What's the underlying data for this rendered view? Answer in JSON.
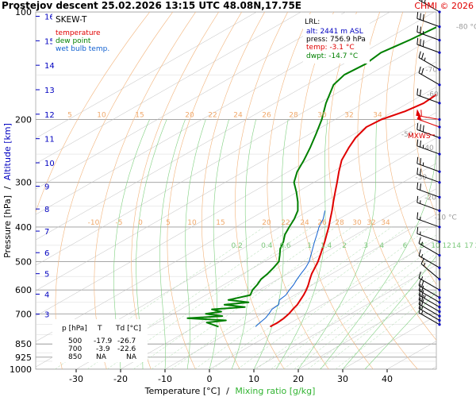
{
  "chart_data": {
    "type": "line",
    "title": "Prostejov   descent  25.02.2026 13:15 UTC  48.08N,17.75E",
    "copyright": "CHMI © 2026",
    "diagram_label": "SKEW-T",
    "legend": [
      {
        "label": "temperature",
        "color": "#e00000"
      },
      {
        "label": "dew point",
        "color": "#008000"
      },
      {
        "label": "wet bulb temp.",
        "color": "#1060d0"
      }
    ],
    "lrl_box": {
      "heading": "LRL:",
      "lines": [
        {
          "text": "alt: 2441 m ASL",
          "color": "#0000c0"
        },
        {
          "text": "press: 756.9 hPa",
          "color": "#000000"
        },
        {
          "text": "temp: -3.1 °C",
          "color": "#e00000"
        },
        {
          "text": "dwpt: -14.7 °C",
          "color": "#008000"
        }
      ]
    },
    "mxws_label": "MXWS",
    "yaxis": {
      "label_pressure": "Pressure [hPa]",
      "label_separator": "/",
      "label_altitude": "Altitude [km]",
      "pressure_ticks": [
        100,
        200,
        300,
        400,
        500,
        600,
        700,
        850,
        925,
        1000
      ],
      "altitude_ticks": [
        16,
        15,
        14,
        13,
        12,
        11,
        10,
        9,
        8,
        7,
        6,
        5,
        4,
        3
      ],
      "range_hpa": [
        1000,
        100
      ]
    },
    "xaxis": {
      "label_temperature": "Temperature [°C]",
      "label_separator": "/",
      "label_mixing": "Mixing ratio [g/kg]",
      "ticks": [
        -30,
        -20,
        -10,
        0,
        10,
        20,
        30,
        40
      ]
    },
    "isotherm_labels": [
      {
        "label": "-80 °C",
        "p": 110,
        "t": -80
      },
      {
        "label": "-70",
        "p": 145,
        "t": -70
      },
      {
        "label": "-60",
        "p": 170,
        "t": -60
      },
      {
        "label": "-50",
        "p": 220,
        "t": -50
      },
      {
        "label": "-40",
        "p": 240,
        "t": -40
      },
      {
        "label": "-30",
        "p": 290,
        "t": -30
      },
      {
        "label": "-20",
        "p": 330,
        "t": -20
      },
      {
        "label": "-10 °C",
        "p": 375,
        "t": -10
      }
    ],
    "adiabat_labels_upper": [
      "5",
      "10",
      "15",
      "20",
      "22",
      "24",
      "26",
      "28",
      "30",
      "32",
      "34"
    ],
    "adiabat_labels_lower": [
      "-10",
      "-5",
      "0",
      "5",
      "10",
      "15",
      "20",
      "22",
      "24",
      "26",
      "28",
      "30",
      "32",
      "34"
    ],
    "mixing_ratio_labels": [
      "0.2",
      "0.4",
      "0.6",
      "1",
      "1.4",
      "2",
      "3",
      "4",
      "6",
      "8",
      "10",
      "12",
      "14",
      "17",
      "20",
      "25"
    ],
    "table": {
      "headers": [
        "p [hPa]",
        "T",
        "Td [°C]"
      ],
      "rows": [
        [
          "500",
          "-17.9",
          "-26.7"
        ],
        [
          "700",
          "-3.9",
          "-22.6"
        ],
        [
          "850",
          "NA",
          "NA"
        ]
      ]
    },
    "series": [
      {
        "name": "temperature",
        "color": "#e00000",
        "points": [
          {
            "p": 760,
            "t": -3.1
          },
          {
            "p": 740,
            "t": -3.0
          },
          {
            "p": 720,
            "t": -3.3
          },
          {
            "p": 700,
            "t": -3.9
          },
          {
            "p": 680,
            "t": -4.8
          },
          {
            "p": 660,
            "t": -5.6
          },
          {
            "p": 640,
            "t": -6.8
          },
          {
            "p": 620,
            "t": -8.0
          },
          {
            "p": 600,
            "t": -9.4
          },
          {
            "p": 580,
            "t": -11.0
          },
          {
            "p": 560,
            "t": -12.8
          },
          {
            "p": 540,
            "t": -14.6
          },
          {
            "p": 520,
            "t": -16.2
          },
          {
            "p": 500,
            "t": -17.9
          },
          {
            "p": 480,
            "t": -19.9
          },
          {
            "p": 460,
            "t": -22.0
          },
          {
            "p": 440,
            "t": -24.2
          },
          {
            "p": 420,
            "t": -26.6
          },
          {
            "p": 400,
            "t": -29.1
          },
          {
            "p": 380,
            "t": -31.9
          },
          {
            "p": 360,
            "t": -34.8
          },
          {
            "p": 340,
            "t": -38.0
          },
          {
            "p": 320,
            "t": -41.3
          },
          {
            "p": 300,
            "t": -44.8
          },
          {
            "p": 280,
            "t": -48.6
          },
          {
            "p": 260,
            "t": -52.5
          },
          {
            "p": 240,
            "t": -55.8
          },
          {
            "p": 225,
            "t": -58.2
          },
          {
            "p": 210,
            "t": -60.0
          },
          {
            "p": 200,
            "t": -59.6
          },
          {
            "p": 190,
            "t": -57.5
          },
          {
            "p": 180,
            "t": -56.5
          },
          {
            "p": 170,
            "t": -57.0
          },
          {
            "p": 160,
            "t": -57.8
          },
          {
            "p": 150,
            "t": -57.0
          },
          {
            "p": 140,
            "t": -56.5
          },
          {
            "p": 130,
            "t": -57.8
          },
          {
            "p": 125,
            "t": -57.0
          },
          {
            "p": 120,
            "t": -55.5
          },
          {
            "p": 110,
            "t": -54.8
          },
          {
            "p": 100,
            "t": -55.5
          }
        ]
      },
      {
        "name": "dew point",
        "color": "#008000",
        "points": [
          {
            "p": 760,
            "t": -14.7
          },
          {
            "p": 740,
            "t": -19.0
          },
          {
            "p": 730,
            "t": -15.5
          },
          {
            "p": 720,
            "t": -25.0
          },
          {
            "p": 710,
            "t": -18.0
          },
          {
            "p": 700,
            "t": -22.6
          },
          {
            "p": 690,
            "t": -20.0
          },
          {
            "p": 680,
            "t": -23.0
          },
          {
            "p": 670,
            "t": -16.5
          },
          {
            "p": 660,
            "t": -22.0
          },
          {
            "p": 650,
            "t": -17.5
          },
          {
            "p": 640,
            "t": -23.0
          },
          {
            "p": 620,
            "t": -20.0
          },
          {
            "p": 600,
            "t": -21.5
          },
          {
            "p": 580,
            "t": -22.5
          },
          {
            "p": 560,
            "t": -23.8
          },
          {
            "p": 540,
            "t": -24.5
          },
          {
            "p": 520,
            "t": -25.5
          },
          {
            "p": 500,
            "t": -26.7
          },
          {
            "p": 480,
            "t": -29.0
          },
          {
            "p": 460,
            "t": -31.5
          },
          {
            "p": 440,
            "t": -33.5
          },
          {
            "p": 420,
            "t": -36.0
          },
          {
            "p": 400,
            "t": -38.0
          },
          {
            "p": 380,
            "t": -40.0
          },
          {
            "p": 360,
            "t": -42.5
          },
          {
            "p": 340,
            "t": -46.0
          },
          {
            "p": 320,
            "t": -50.0
          },
          {
            "p": 300,
            "t": -54.5
          },
          {
            "p": 280,
            "t": -58.0
          },
          {
            "p": 260,
            "t": -61.0
          },
          {
            "p": 240,
            "t": -64.5
          },
          {
            "p": 220,
            "t": -68.5
          },
          {
            "p": 200,
            "t": -73.0
          },
          {
            "p": 180,
            "t": -78.5
          },
          {
            "p": 160,
            "t": -84.0
          },
          {
            "p": 150,
            "t": -85.5
          },
          {
            "p": 140,
            "t": -85.0
          },
          {
            "p": 130,
            "t": -86.0
          },
          {
            "p": 120,
            "t": -84.5
          },
          {
            "p": 110,
            "t": -83.5
          },
          {
            "p": 100,
            "t": -83.5
          }
        ]
      },
      {
        "name": "wet bulb temp.",
        "color": "#1060d0",
        "points": [
          {
            "p": 760,
            "t": -6.4
          },
          {
            "p": 740,
            "t": -7.0
          },
          {
            "p": 720,
            "t": -7.5
          },
          {
            "p": 700,
            "t": -8.4
          },
          {
            "p": 680,
            "t": -9.5
          },
          {
            "p": 660,
            "t": -9.8
          },
          {
            "p": 640,
            "t": -11.5
          },
          {
            "p": 620,
            "t": -12.0
          },
          {
            "p": 600,
            "t": -13.2
          },
          {
            "p": 580,
            "t": -14.3
          },
          {
            "p": 560,
            "t": -15.7
          },
          {
            "p": 540,
            "t": -17.0
          },
          {
            "p": 520,
            "t": -18.3
          },
          {
            "p": 500,
            "t": -19.9
          },
          {
            "p": 480,
            "t": -22.0
          },
          {
            "p": 460,
            "t": -24.2
          },
          {
            "p": 440,
            "t": -26.5
          },
          {
            "p": 420,
            "t": -28.8
          },
          {
            "p": 400,
            "t": -31.3
          },
          {
            "p": 380,
            "t": -33.5
          },
          {
            "p": 360,
            "t": -36.4
          }
        ]
      }
    ],
    "wind_barbs": [
      {
        "p": 100,
        "dir": 300,
        "kt": 30
      },
      {
        "p": 110,
        "dir": 290,
        "kt": 30
      },
      {
        "p": 120,
        "dir": 290,
        "kt": 25
      },
      {
        "p": 130,
        "dir": 290,
        "kt": 30
      },
      {
        "p": 145,
        "dir": 300,
        "kt": 25
      },
      {
        "p": 160,
        "dir": 300,
        "kt": 20
      },
      {
        "p": 180,
        "dir": 290,
        "kt": 20
      },
      {
        "p": 200,
        "dir": 280,
        "kt": 60
      },
      {
        "p": 210,
        "dir": 290,
        "kt": 50
      },
      {
        "p": 225,
        "dir": 290,
        "kt": 30
      },
      {
        "p": 250,
        "dir": 290,
        "kt": 25
      },
      {
        "p": 280,
        "dir": 290,
        "kt": 25
      },
      {
        "p": 300,
        "dir": 290,
        "kt": 20
      },
      {
        "p": 330,
        "dir": 290,
        "kt": 20
      },
      {
        "p": 360,
        "dir": 290,
        "kt": 15
      },
      {
        "p": 400,
        "dir": 290,
        "kt": 15
      },
      {
        "p": 440,
        "dir": 290,
        "kt": 15
      },
      {
        "p": 480,
        "dir": 300,
        "kt": 15
      },
      {
        "p": 520,
        "dir": 300,
        "kt": 15
      },
      {
        "p": 560,
        "dir": 310,
        "kt": 15
      },
      {
        "p": 600,
        "dir": 300,
        "kt": 15
      },
      {
        "p": 630,
        "dir": 300,
        "kt": 20
      },
      {
        "p": 650,
        "dir": 300,
        "kt": 20
      },
      {
        "p": 670,
        "dir": 300,
        "kt": 25
      },
      {
        "p": 690,
        "dir": 300,
        "kt": 20
      },
      {
        "p": 710,
        "dir": 300,
        "kt": 20
      },
      {
        "p": 730,
        "dir": 300,
        "kt": 15
      },
      {
        "p": 750,
        "dir": 300,
        "kt": 15
      }
    ]
  }
}
